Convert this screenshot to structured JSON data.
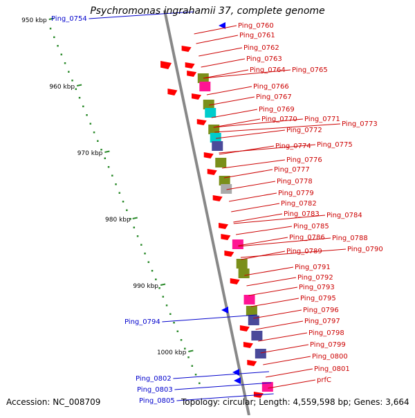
{
  "title": "Psychromonas ingrahamii 37, complete genome",
  "accession": "Accession: NC_008709",
  "topology": "Topology: circular; Length: 4,559,598 bp; Genes: 3,664",
  "colors": {
    "forward_gene": "#ff0000",
    "reverse_gene": "#0000ff",
    "forward_label": "#cc0000",
    "reverse_label": "#0000cc",
    "olive": "#7a8f1a",
    "cyan": "#00cccc",
    "magenta": "#ff1493",
    "navy": "#4a4a9a",
    "axis": "#888888",
    "tick": "#2a8a2a"
  },
  "scale_labels": [
    {
      "text": "950 kbp",
      "kbp": 950
    },
    {
      "text": "960 kbp",
      "kbp": 960
    },
    {
      "text": "970 kbp",
      "kbp": 970
    },
    {
      "text": "980 kbp",
      "kbp": 980
    },
    {
      "text": "990 kbp",
      "kbp": 990
    },
    {
      "text": "1000 kbp",
      "kbp": 1000
    }
  ],
  "gene_labels_forward": [
    "Ping_0760",
    "Ping_0761",
    "Ping_0762",
    "Ping_0763",
    "Ping_0764",
    "Ping_0765",
    "Ping_0766",
    "Ping_0767",
    "Ping_0769",
    "Ping_0770",
    "Ping_0771",
    "Ping_0772",
    "Ping_0773",
    "Ping_0774",
    "Ping_0775",
    "Ping_0776",
    "Ping_0777",
    "Ping_0778",
    "Ping_0779",
    "Ping_0782",
    "Ping_0783",
    "Ping_0784",
    "Ping_0785",
    "Ping_0786",
    "Ping_0788",
    "Ping_0789",
    "Ping_0790",
    "Ping_0791",
    "Ping_0792",
    "Ping_0793",
    "Ping_0795",
    "Ping_0796",
    "Ping_0797",
    "Ping_0798",
    "Ping_0799",
    "Ping_0800",
    "Ping_0801",
    "prfC"
  ],
  "gene_labels_reverse": [
    "Ping_0754",
    "Ping_0794",
    "Ping_0802",
    "Ping_0803",
    "Ping_0805"
  ]
}
